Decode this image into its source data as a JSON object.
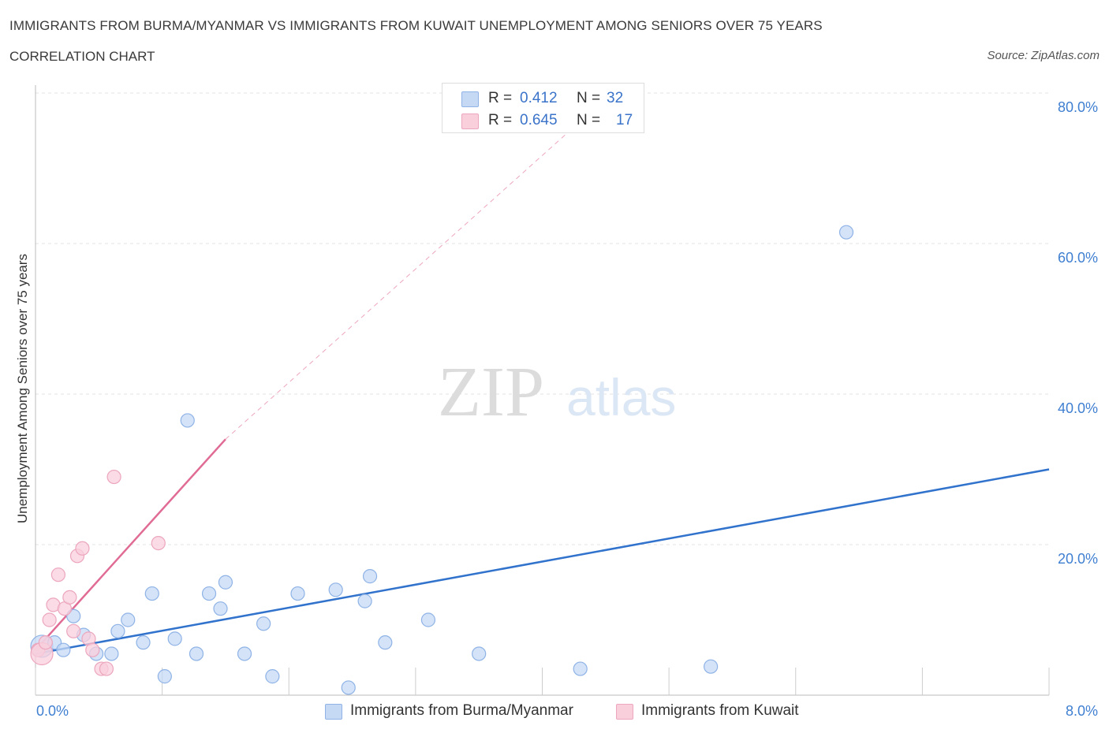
{
  "header": {
    "title": "IMMIGRANTS FROM BURMA/MYANMAR VS IMMIGRANTS FROM KUWAIT UNEMPLOYMENT AMONG SENIORS OVER 75 YEARS",
    "subtitle": "CORRELATION CHART",
    "source": "Source: ZipAtlas.com"
  },
  "legend": {
    "rows": [
      {
        "r_label": "R =",
        "r_value": "0.412",
        "n_label": "N =",
        "n_value": "32"
      },
      {
        "r_label": "R =",
        "r_value": "0.645",
        "n_label": "N =",
        "n_value": "17"
      }
    ],
    "bottom": [
      "Immigrants from Burma/Myanmar",
      "Immigrants from Kuwait"
    ]
  },
  "colors": {
    "burma_fill": "#c5d9f5",
    "burma_stroke": "#8fb3e6",
    "burma_line": "#3072cc",
    "kuwait_fill": "#f9cfdc",
    "kuwait_stroke": "#eca6bd",
    "kuwait_line": "#e06b94",
    "axis_label": "#3f7fd1"
  },
  "watermark": {
    "zip": "ZIP",
    "atlas": "atlas"
  },
  "chart_data": {
    "type": "scatter",
    "title": "IMMIGRANTS FROM BURMA/MYANMAR VS IMMIGRANTS FROM KUWAIT UNEMPLOYMENT AMONG SENIORS OVER 75 YEARS",
    "xlabel": "",
    "ylabel": "Unemployment Among Seniors over 75 years",
    "xlim": [
      0,
      8
    ],
    "ylim": [
      0,
      80
    ],
    "x_tick_labels": [
      "0.0%",
      "8.0%"
    ],
    "y_ticks": [
      20,
      40,
      60,
      80
    ],
    "y_tick_labels": [
      "20.0%",
      "40.0%",
      "60.0%",
      "80.0%"
    ],
    "grid": true,
    "legend_position": "top-center",
    "series": [
      {
        "name": "Immigrants from Burma/Myanmar",
        "points": [
          [
            0.05,
            6.5
          ],
          [
            0.15,
            7.0
          ],
          [
            0.22,
            6.0
          ],
          [
            0.3,
            10.5
          ],
          [
            0.38,
            8.0
          ],
          [
            0.48,
            5.5
          ],
          [
            0.6,
            5.5
          ],
          [
            0.65,
            8.5
          ],
          [
            0.73,
            10.0
          ],
          [
            0.85,
            7.0
          ],
          [
            0.92,
            13.5
          ],
          [
            1.02,
            2.5
          ],
          [
            1.1,
            7.5
          ],
          [
            1.2,
            36.5
          ],
          [
            1.27,
            5.5
          ],
          [
            1.37,
            13.5
          ],
          [
            1.46,
            11.5
          ],
          [
            1.5,
            15.0
          ],
          [
            1.65,
            5.5
          ],
          [
            1.8,
            9.5
          ],
          [
            1.87,
            2.5
          ],
          [
            2.07,
            13.5
          ],
          [
            2.37,
            14.0
          ],
          [
            2.47,
            1.0
          ],
          [
            2.6,
            12.5
          ],
          [
            2.64,
            15.8
          ],
          [
            2.76,
            7.0
          ],
          [
            3.1,
            10.0
          ],
          [
            3.5,
            5.5
          ],
          [
            4.3,
            3.5
          ],
          [
            5.33,
            3.8
          ],
          [
            6.4,
            61.5
          ]
        ],
        "trend": {
          "x": [
            0,
            8
          ],
          "y": [
            5.5,
            30.0
          ]
        }
      },
      {
        "name": "Immigrants from Kuwait",
        "points": [
          [
            0.02,
            6.0
          ],
          [
            0.05,
            5.5
          ],
          [
            0.08,
            7.0
          ],
          [
            0.11,
            10.0
          ],
          [
            0.14,
            12.0
          ],
          [
            0.18,
            16.0
          ],
          [
            0.23,
            11.5
          ],
          [
            0.27,
            13.0
          ],
          [
            0.3,
            8.5
          ],
          [
            0.33,
            18.5
          ],
          [
            0.37,
            19.5
          ],
          [
            0.42,
            7.5
          ],
          [
            0.45,
            6.0
          ],
          [
            0.52,
            3.5
          ],
          [
            0.56,
            3.5
          ],
          [
            0.62,
            29.0
          ],
          [
            0.97,
            20.2
          ]
        ],
        "trend": {
          "x": [
            0,
            1.5
          ],
          "y": [
            6.0,
            34.0
          ]
        },
        "trend_extension": {
          "x": [
            1.5,
            4.55
          ],
          "y": [
            34.0,
            80.0
          ]
        }
      }
    ]
  }
}
